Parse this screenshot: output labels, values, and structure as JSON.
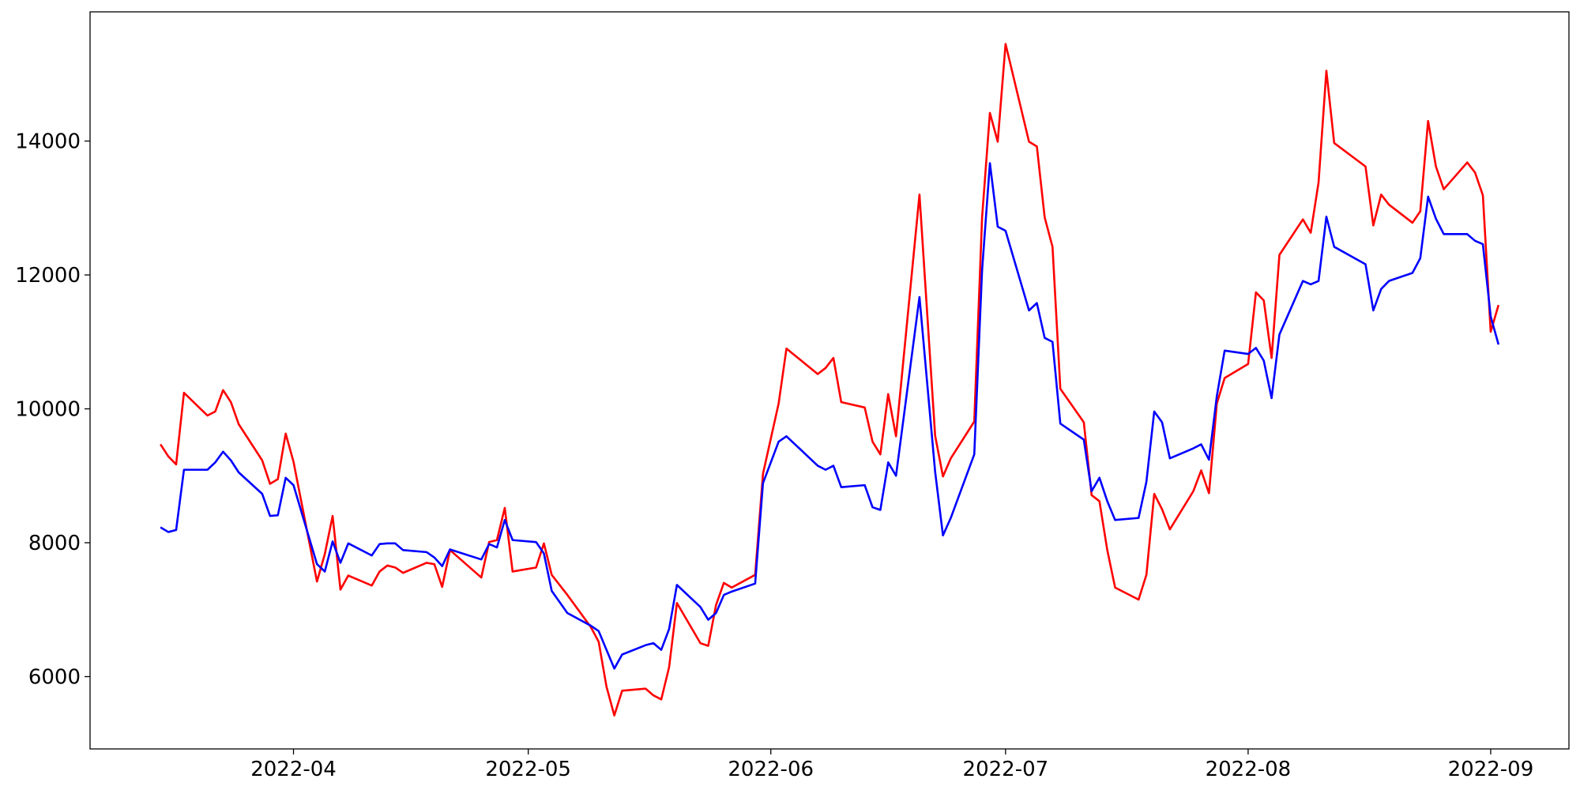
{
  "chart_data": {
    "type": "line",
    "x": [
      "2022-03-15",
      "2022-03-16",
      "2022-03-17",
      "2022-03-18",
      "2022-03-21",
      "2022-03-22",
      "2022-03-23",
      "2022-03-24",
      "2022-03-25",
      "2022-03-28",
      "2022-03-29",
      "2022-03-30",
      "2022-03-31",
      "2022-04-01",
      "2022-04-04",
      "2022-04-05",
      "2022-04-06",
      "2022-04-07",
      "2022-04-08",
      "2022-04-11",
      "2022-04-12",
      "2022-04-13",
      "2022-04-14",
      "2022-04-15",
      "2022-04-18",
      "2022-04-19",
      "2022-04-20",
      "2022-04-21",
      "2022-04-25",
      "2022-04-26",
      "2022-04-27",
      "2022-04-28",
      "2022-04-29",
      "2022-05-02",
      "2022-05-03",
      "2022-05-04",
      "2022-05-06",
      "2022-05-09",
      "2022-05-10",
      "2022-05-11",
      "2022-05-12",
      "2022-05-13",
      "2022-05-16",
      "2022-05-17",
      "2022-05-18",
      "2022-05-19",
      "2022-05-20",
      "2022-05-23",
      "2022-05-24",
      "2022-05-25",
      "2022-05-26",
      "2022-05-27",
      "2022-05-30",
      "2022-05-31",
      "2022-06-02",
      "2022-06-03",
      "2022-06-07",
      "2022-06-08",
      "2022-06-09",
      "2022-06-10",
      "2022-06-13",
      "2022-06-14",
      "2022-06-15",
      "2022-06-16",
      "2022-06-17",
      "2022-06-20",
      "2022-06-22",
      "2022-06-23",
      "2022-06-24",
      "2022-06-27",
      "2022-06-28",
      "2022-06-29",
      "2022-06-30",
      "2022-07-01",
      "2022-07-04",
      "2022-07-05",
      "2022-07-06",
      "2022-07-07",
      "2022-07-08",
      "2022-07-11",
      "2022-07-12",
      "2022-07-13",
      "2022-07-14",
      "2022-07-15",
      "2022-07-18",
      "2022-07-19",
      "2022-07-20",
      "2022-07-21",
      "2022-07-22",
      "2022-07-25",
      "2022-07-26",
      "2022-07-27",
      "2022-07-28",
      "2022-07-29",
      "2022-08-01",
      "2022-08-02",
      "2022-08-03",
      "2022-08-04",
      "2022-08-05",
      "2022-08-08",
      "2022-08-09",
      "2022-08-10",
      "2022-08-11",
      "2022-08-12",
      "2022-08-16",
      "2022-08-17",
      "2022-08-18",
      "2022-08-19",
      "2022-08-22",
      "2022-08-23",
      "2022-08-24",
      "2022-08-25",
      "2022-08-26",
      "2022-08-29",
      "2022-08-30",
      "2022-08-31",
      "2022-09-01",
      "2022-09-02"
    ],
    "series": [
      {
        "color": "#ff0000",
        "values": [
          9470,
          9290,
          9170,
          10240,
          9900,
          9960,
          10280,
          10100,
          9770,
          9230,
          8880,
          8950,
          9630,
          9210,
          7420,
          7830,
          8400,
          7300,
          7510,
          7360,
          7570,
          7660,
          7630,
          7550,
          7700,
          7680,
          7340,
          7890,
          7480,
          8010,
          8040,
          8520,
          7570,
          7630,
          7990,
          7520,
          7220,
          6740,
          6520,
          5850,
          5420,
          5790,
          5820,
          5720,
          5660,
          6140,
          7100,
          6500,
          6460,
          7070,
          7400,
          7330,
          7520,
          9030,
          10080,
          10900,
          10520,
          10610,
          10760,
          10100,
          10020,
          9510,
          9320,
          10220,
          9590,
          13200,
          9600,
          8990,
          9260,
          9810,
          12860,
          14420,
          13990,
          15450,
          13990,
          13920,
          12860,
          12420,
          10300,
          9800,
          8710,
          8620,
          7890,
          7330,
          7150,
          7520,
          8730,
          8500,
          8200,
          8770,
          9080,
          8740,
          10080,
          10460,
          10670,
          11740,
          11620,
          10760,
          12300,
          12830,
          12630,
          13380,
          15050,
          13970,
          13620,
          12740,
          13200,
          13050,
          12780,
          12950,
          14300,
          13620,
          13280,
          13680,
          13530,
          13190,
          11150,
          11550
        ]
      },
      {
        "color": "#0000ff",
        "values": [
          8230,
          8160,
          8190,
          9090,
          9090,
          9200,
          9360,
          9230,
          9050,
          8730,
          8400,
          8410,
          8970,
          8860,
          7680,
          7570,
          8020,
          7700,
          7990,
          7810,
          7980,
          7990,
          7990,
          7890,
          7860,
          7780,
          7650,
          7900,
          7750,
          7980,
          7930,
          8340,
          8040,
          8010,
          7840,
          7280,
          6950,
          6760,
          6680,
          6400,
          6120,
          6330,
          6470,
          6500,
          6400,
          6710,
          7370,
          7040,
          6850,
          6950,
          7220,
          7270,
          7390,
          8890,
          9510,
          9590,
          9150,
          9090,
          9150,
          8830,
          8860,
          8530,
          8490,
          9200,
          9000,
          11670,
          9060,
          8110,
          8370,
          9320,
          12070,
          13670,
          12720,
          12660,
          11470,
          11580,
          11060,
          11000,
          9780,
          9540,
          8770,
          8970,
          8620,
          8340,
          8370,
          8910,
          9960,
          9800,
          9260,
          9410,
          9470,
          9240,
          10190,
          10870,
          10820,
          10910,
          10720,
          10160,
          11110,
          11910,
          11860,
          11910,
          12870,
          12420,
          12160,
          11470,
          11790,
          11910,
          12030,
          12250,
          13170,
          12840,
          12610,
          12610,
          12510,
          12460,
          11380,
          10960
        ]
      }
    ],
    "xlim": [
      "2022-03-06",
      "2022-09-11"
    ],
    "xticks": [
      "2022-04",
      "2022-05",
      "2022-06",
      "2022-07",
      "2022-08",
      "2022-09"
    ],
    "ylim": [
      4920,
      15930
    ],
    "yticks": [
      6000,
      8000,
      10000,
      12000,
      14000
    ],
    "grid": false
  }
}
